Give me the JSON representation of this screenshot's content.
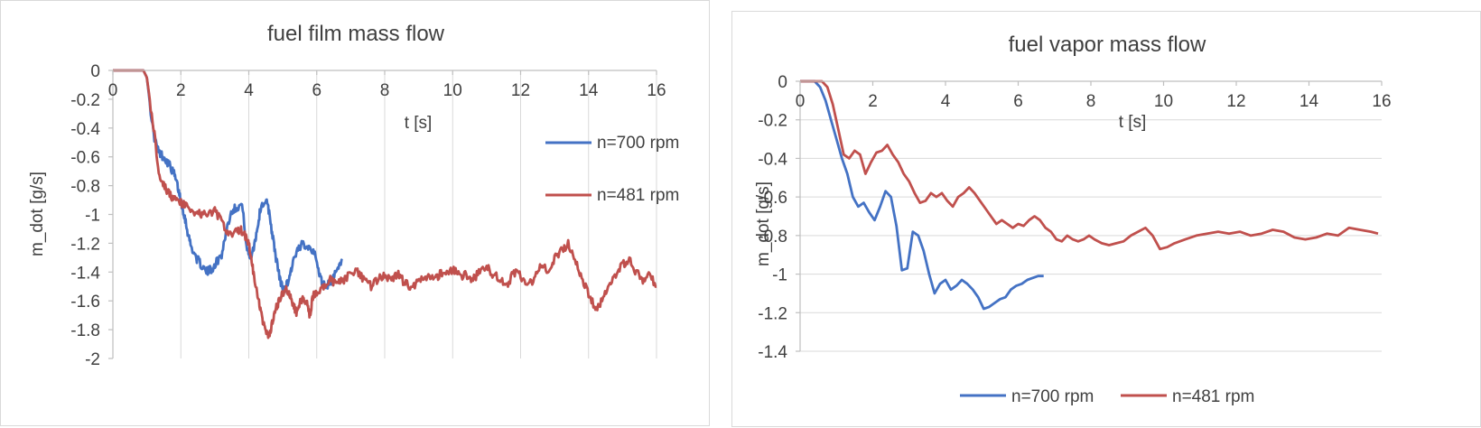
{
  "chart_data": [
    {
      "type": "line",
      "title": "fuel film mass flow",
      "xlabel": "t [s]",
      "ylabel": "m_dot [g/s]",
      "xlim": [
        0,
        16
      ],
      "ylim": [
        -2,
        0
      ],
      "xticks": [
        0,
        2,
        4,
        6,
        8,
        10,
        12,
        14,
        16
      ],
      "yticks": [
        0,
        -0.2,
        -0.4,
        -0.6,
        -0.8,
        -1,
        -1.2,
        -1.4,
        -1.6,
        -1.8,
        -2
      ],
      "xtick_labels": [
        "0",
        "2",
        "4",
        "6",
        "8",
        "10",
        "12",
        "14",
        "16"
      ],
      "ytick_labels": [
        "0",
        "-0.2",
        "-0.4",
        "-0.6",
        "-0.8",
        "-1",
        "-1.2",
        "-1.4",
        "-1.6",
        "-1.8",
        "-2"
      ],
      "grid": "vertical",
      "legend_position": "right",
      "series": [
        {
          "name": "n=700 rpm",
          "color": "#4472c4",
          "noisy": true,
          "x": [
            0,
            0.9,
            1.0,
            1.2,
            1.35,
            1.5,
            1.65,
            1.8,
            1.9,
            2.0,
            2.1,
            2.2,
            2.3,
            2.45,
            2.6,
            2.75,
            2.9,
            3.05,
            3.2,
            3.35,
            3.5,
            3.65,
            3.8,
            3.95,
            4.05,
            4.15,
            4.25,
            4.35,
            4.5,
            4.6,
            4.7,
            4.8,
            4.9,
            5.0,
            5.1,
            5.2,
            5.3,
            5.45,
            5.6,
            5.75,
            5.9,
            6.05,
            6.15,
            6.3,
            6.45,
            6.6,
            6.75
          ],
          "y": [
            0,
            0,
            -0.05,
            -0.45,
            -0.57,
            -0.6,
            -0.65,
            -0.72,
            -0.8,
            -0.9,
            -1.0,
            -1.12,
            -1.22,
            -1.3,
            -1.35,
            -1.4,
            -1.38,
            -1.33,
            -1.28,
            -1.1,
            -0.97,
            -0.95,
            -0.93,
            -1.25,
            -1.3,
            -1.22,
            -1.1,
            -0.95,
            -0.9,
            -0.98,
            -1.15,
            -1.3,
            -1.43,
            -1.52,
            -1.5,
            -1.43,
            -1.33,
            -1.25,
            -1.2,
            -1.22,
            -1.25,
            -1.38,
            -1.47,
            -1.5,
            -1.45,
            -1.4,
            -1.32
          ]
        },
        {
          "name": "n=481 rpm",
          "color": "#c0504d",
          "noisy": true,
          "x": [
            0,
            0.9,
            1.0,
            1.2,
            1.35,
            1.5,
            1.65,
            1.8,
            2.0,
            2.2,
            2.4,
            2.6,
            2.8,
            3.0,
            3.2,
            3.4,
            3.6,
            3.75,
            3.9,
            4.0,
            4.1,
            4.2,
            4.3,
            4.4,
            4.5,
            4.6,
            4.7,
            4.8,
            4.9,
            5.0,
            5.1,
            5.2,
            5.3,
            5.4,
            5.5,
            5.6,
            5.7,
            5.8,
            5.9,
            6.0,
            6.2,
            6.4,
            6.6,
            6.8,
            7.0,
            7.2,
            7.4,
            7.6,
            7.8,
            8.0,
            8.2,
            8.4,
            8.6,
            8.8,
            9.0,
            9.2,
            9.4,
            9.6,
            9.8,
            10.0,
            10.2,
            10.4,
            10.6,
            10.8,
            11.0,
            11.2,
            11.4,
            11.6,
            11.8,
            12.0,
            12.2,
            12.4,
            12.6,
            12.8,
            13.0,
            13.2,
            13.4,
            13.6,
            13.8,
            14.0,
            14.2,
            14.4,
            14.6,
            14.8,
            15.0,
            15.2,
            15.4,
            15.6,
            15.8,
            16.0
          ],
          "y": [
            0,
            0,
            -0.05,
            -0.4,
            -0.7,
            -0.8,
            -0.85,
            -0.9,
            -0.92,
            -0.95,
            -0.98,
            -1.0,
            -1.0,
            -0.97,
            -1.05,
            -1.15,
            -1.12,
            -1.1,
            -1.15,
            -1.2,
            -1.35,
            -1.5,
            -1.62,
            -1.72,
            -1.82,
            -1.85,
            -1.75,
            -1.65,
            -1.6,
            -1.55,
            -1.52,
            -1.56,
            -1.62,
            -1.68,
            -1.62,
            -1.58,
            -1.6,
            -1.7,
            -1.55,
            -1.55,
            -1.5,
            -1.45,
            -1.48,
            -1.45,
            -1.42,
            -1.4,
            -1.45,
            -1.5,
            -1.45,
            -1.43,
            -1.45,
            -1.42,
            -1.48,
            -1.5,
            -1.47,
            -1.43,
            -1.45,
            -1.42,
            -1.4,
            -1.38,
            -1.43,
            -1.42,
            -1.45,
            -1.4,
            -1.35,
            -1.42,
            -1.45,
            -1.5,
            -1.4,
            -1.43,
            -1.5,
            -1.45,
            -1.35,
            -1.4,
            -1.3,
            -1.25,
            -1.2,
            -1.3,
            -1.45,
            -1.55,
            -1.65,
            -1.6,
            -1.5,
            -1.42,
            -1.35,
            -1.32,
            -1.4,
            -1.45,
            -1.42,
            -1.5
          ]
        }
      ]
    },
    {
      "type": "line",
      "title": "fuel vapor mass flow",
      "xlabel": "t [s]",
      "ylabel": "m_dot [g/s]",
      "xlim": [
        0,
        16
      ],
      "ylim": [
        -1.4,
        0
      ],
      "xticks": [
        0,
        2,
        4,
        6,
        8,
        10,
        12,
        14,
        16
      ],
      "yticks": [
        0,
        -0.2,
        -0.4,
        -0.6,
        -0.8,
        -1,
        -1.2,
        -1.4
      ],
      "xtick_labels": [
        "0",
        "2",
        "4",
        "6",
        "8",
        "10",
        "12",
        "14",
        "16"
      ],
      "ytick_labels": [
        "0",
        "-0.2",
        "-0.4",
        "-0.6",
        "-0.8",
        "-1",
        "-1.2",
        "-1.4"
      ],
      "grid": "horizontal",
      "legend_position": "bottom",
      "series": [
        {
          "name": "n=700 rpm",
          "color": "#4472c4",
          "noisy": false,
          "x": [
            0,
            0.4,
            0.55,
            0.7,
            0.85,
            1.0,
            1.15,
            1.3,
            1.45,
            1.6,
            1.75,
            1.9,
            2.05,
            2.2,
            2.35,
            2.5,
            2.65,
            2.8,
            2.95,
            3.1,
            3.25,
            3.4,
            3.55,
            3.7,
            3.85,
            4.0,
            4.15,
            4.3,
            4.45,
            4.6,
            4.75,
            4.9,
            5.05,
            5.2,
            5.35,
            5.5,
            5.65,
            5.8,
            5.95,
            6.1,
            6.25,
            6.4,
            6.55,
            6.7
          ],
          "y": [
            0,
            0,
            -0.03,
            -0.1,
            -0.2,
            -0.3,
            -0.4,
            -0.48,
            -0.6,
            -0.65,
            -0.63,
            -0.68,
            -0.72,
            -0.65,
            -0.57,
            -0.6,
            -0.75,
            -0.98,
            -0.97,
            -0.78,
            -0.8,
            -0.88,
            -1.0,
            -1.1,
            -1.05,
            -1.03,
            -1.08,
            -1.06,
            -1.03,
            -1.05,
            -1.08,
            -1.12,
            -1.18,
            -1.17,
            -1.15,
            -1.13,
            -1.12,
            -1.08,
            -1.06,
            -1.05,
            -1.03,
            -1.02,
            -1.01,
            -1.01
          ]
        },
        {
          "name": "n=481 rpm",
          "color": "#c0504d",
          "noisy": false,
          "x": [
            0,
            0.6,
            0.75,
            0.9,
            1.05,
            1.2,
            1.35,
            1.5,
            1.65,
            1.8,
            1.95,
            2.1,
            2.25,
            2.4,
            2.55,
            2.7,
            2.85,
            3.0,
            3.15,
            3.3,
            3.45,
            3.6,
            3.75,
            3.9,
            4.05,
            4.2,
            4.35,
            4.5,
            4.65,
            4.8,
            4.95,
            5.1,
            5.25,
            5.4,
            5.55,
            5.7,
            5.85,
            6.0,
            6.15,
            6.3,
            6.45,
            6.6,
            6.75,
            6.9,
            7.05,
            7.2,
            7.35,
            7.5,
            7.65,
            7.8,
            7.95,
            8.1,
            8.3,
            8.5,
            8.7,
            8.9,
            9.1,
            9.3,
            9.5,
            9.7,
            9.9,
            10.1,
            10.3,
            10.6,
            10.9,
            11.2,
            11.5,
            11.8,
            12.1,
            12.4,
            12.7,
            13.0,
            13.3,
            13.6,
            13.9,
            14.2,
            14.5,
            14.8,
            15.1,
            15.4,
            15.7,
            15.9
          ],
          "y": [
            0,
            0,
            -0.03,
            -0.12,
            -0.25,
            -0.38,
            -0.4,
            -0.36,
            -0.38,
            -0.48,
            -0.42,
            -0.37,
            -0.36,
            -0.33,
            -0.38,
            -0.42,
            -0.48,
            -0.52,
            -0.58,
            -0.63,
            -0.62,
            -0.58,
            -0.6,
            -0.58,
            -0.62,
            -0.65,
            -0.6,
            -0.58,
            -0.55,
            -0.58,
            -0.62,
            -0.66,
            -0.7,
            -0.74,
            -0.72,
            -0.74,
            -0.76,
            -0.74,
            -0.75,
            -0.72,
            -0.7,
            -0.72,
            -0.76,
            -0.78,
            -0.82,
            -0.83,
            -0.8,
            -0.82,
            -0.83,
            -0.82,
            -0.8,
            -0.82,
            -0.84,
            -0.85,
            -0.84,
            -0.83,
            -0.8,
            -0.78,
            -0.76,
            -0.8,
            -0.87,
            -0.86,
            -0.84,
            -0.82,
            -0.8,
            -0.79,
            -0.78,
            -0.79,
            -0.78,
            -0.8,
            -0.79,
            -0.77,
            -0.78,
            -0.81,
            -0.82,
            -0.81,
            -0.79,
            -0.8,
            -0.76,
            -0.77,
            -0.78,
            -0.79
          ]
        }
      ]
    }
  ]
}
